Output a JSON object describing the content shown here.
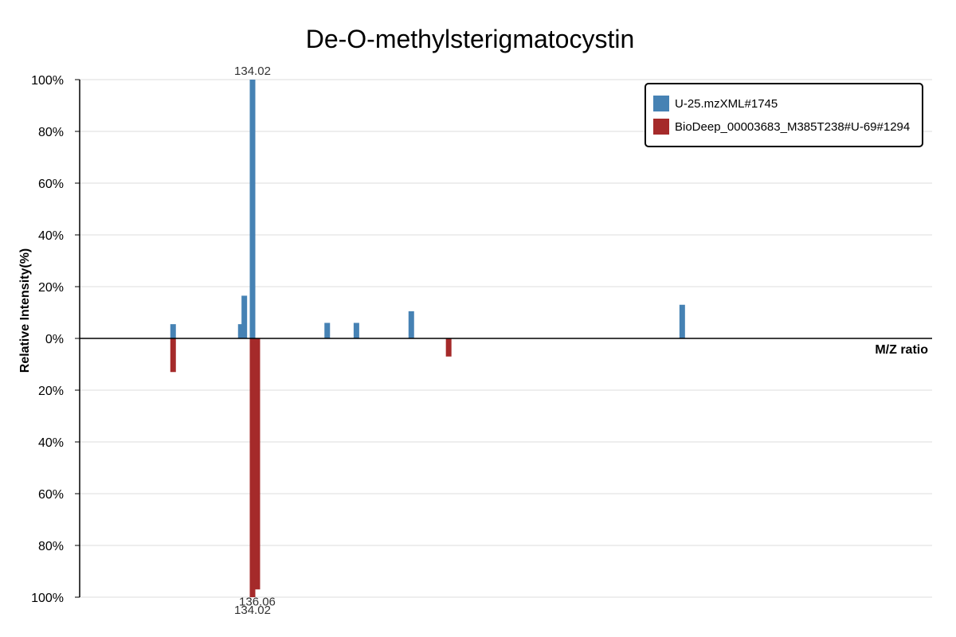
{
  "chart_data": {
    "type": "bar",
    "title": "De-O-methylsterigmatocystin",
    "xlabel": "M/Z ratio",
    "ylabel": "Relative Intensity(%)",
    "y_ticks_top": [
      "100%",
      "80%",
      "60%",
      "40%",
      "20%",
      "0%"
    ],
    "y_ticks_bottom": [
      "20%",
      "40%",
      "60%",
      "80%",
      "100%"
    ],
    "ylim": [
      -100,
      100
    ],
    "xlim": [
      60,
      425
    ],
    "grid": true,
    "legend_position": "top-right",
    "series": [
      {
        "name": "U-25.mzXML#1745",
        "color": "#4682b4",
        "direction": "up",
        "peaks": [
          {
            "mz": 100.0,
            "intensity": 5.5
          },
          {
            "mz": 129.0,
            "intensity": 5.5
          },
          {
            "mz": 130.5,
            "intensity": 16.5
          },
          {
            "mz": 134.02,
            "intensity": 100.0,
            "label": "134.02"
          },
          {
            "mz": 166.0,
            "intensity": 6.0
          },
          {
            "mz": 178.5,
            "intensity": 6.0
          },
          {
            "mz": 202.0,
            "intensity": 10.5
          },
          {
            "mz": 318.0,
            "intensity": 13.0
          }
        ]
      },
      {
        "name": "BioDeep_00003683_M385T238#U-69#1294",
        "color": "#a52a2a",
        "direction": "down",
        "peaks": [
          {
            "mz": 100.0,
            "intensity": 13.0
          },
          {
            "mz": 134.02,
            "intensity": 100.0,
            "label": "134.02"
          },
          {
            "mz": 136.06,
            "intensity": 97.0,
            "label": "136.06"
          },
          {
            "mz": 218.0,
            "intensity": 7.0
          }
        ]
      }
    ]
  }
}
